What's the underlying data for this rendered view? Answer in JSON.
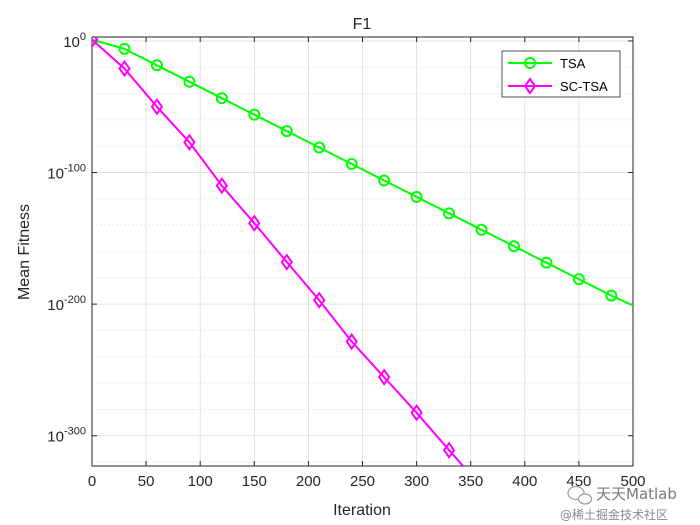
{
  "chart_data": {
    "type": "line",
    "title": "F1",
    "xlabel": "Iteration",
    "ylabel": "Mean Fitness",
    "xlim": [
      0,
      500
    ],
    "ylim_exponent": [
      -323,
      3
    ],
    "yscale": "log",
    "grid": true,
    "minor_grid": true,
    "legend_position": "top-right",
    "x_ticks": [
      0,
      50,
      100,
      150,
      200,
      250,
      300,
      350,
      400,
      450,
      500
    ],
    "y_ticks": [
      {
        "base": "10",
        "exp": "0",
        "value": 0
      },
      {
        "base": "10",
        "exp": "-100",
        "value": -100
      },
      {
        "base": "10",
        "exp": "-200",
        "value": -200
      },
      {
        "base": "10",
        "exp": "-300",
        "value": -300
      }
    ],
    "series": [
      {
        "name": "TSA",
        "color": "#00ff00",
        "marker": "circle",
        "x": [
          0,
          30,
          60,
          90,
          120,
          150,
          180,
          210,
          240,
          270,
          300,
          330,
          360,
          390,
          420,
          450,
          480,
          500
        ],
        "log10_y": [
          1,
          -6,
          -18.5,
          -31,
          -43.5,
          -56,
          -68.5,
          -81,
          -93.5,
          -106,
          -118.5,
          -131,
          -143.5,
          -156,
          -168.5,
          -181,
          -193.5,
          -201
        ]
      },
      {
        "name": "SC-TSA",
        "color": "#ff00ff",
        "marker": "diamond",
        "x": [
          0,
          30,
          60,
          90,
          120,
          150,
          180,
          210,
          240,
          270,
          300,
          330,
          343
        ],
        "log10_y": [
          1,
          -21,
          -50,
          -77,
          -110,
          -138.5,
          -168,
          -197,
          -228.5,
          -255.5,
          -282.5,
          -311,
          -323
        ]
      }
    ]
  },
  "watermark": {
    "main": "天天Matlab",
    "sub": "@稀土掘金技术社区",
    "icon": "wechat-icon"
  }
}
